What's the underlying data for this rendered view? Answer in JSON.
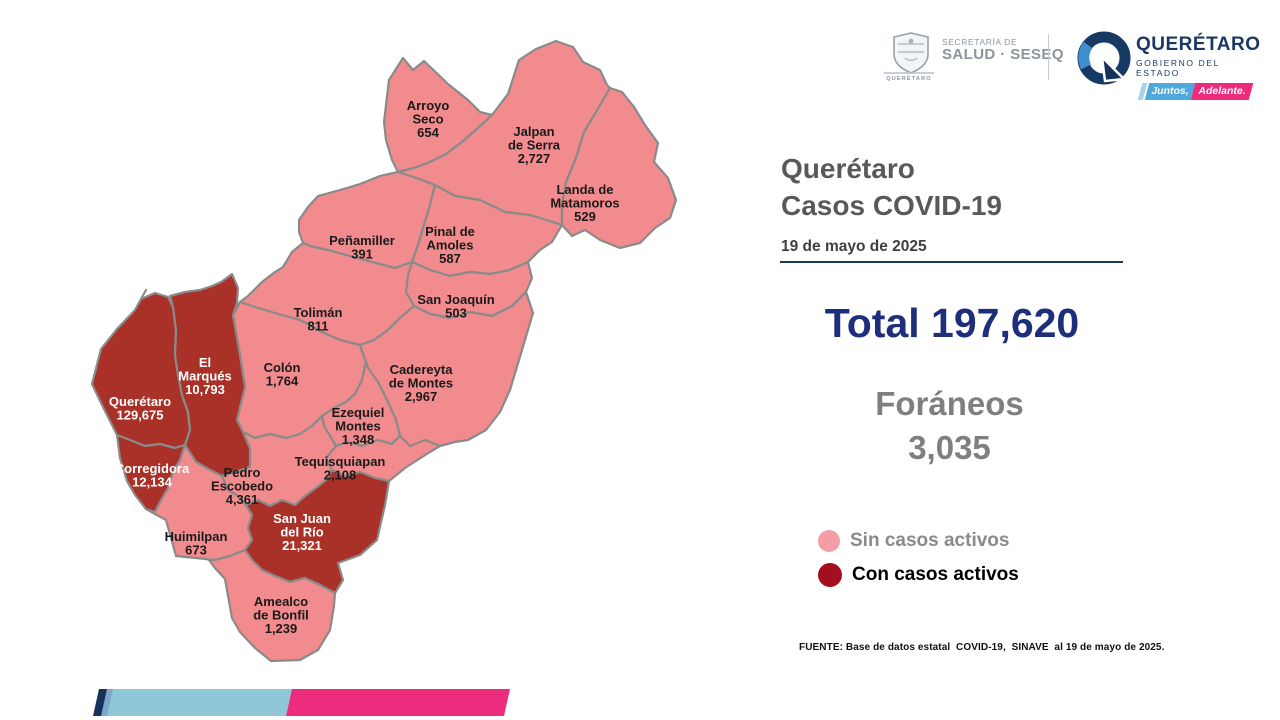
{
  "header": {
    "title_line1": "Querétaro",
    "title_line2": "Casos COVID-19",
    "date": "19 de mayo de 2025"
  },
  "stats": {
    "total_text": "Total 197,620",
    "foraneos_label": "Foráneos",
    "foraneos_value": "3,035"
  },
  "legend": {
    "no_active_label": "Sin casos activos",
    "active_label": "Con casos activos",
    "no_active_color": "#f59da6",
    "active_color": "#a50e1e"
  },
  "footer": {
    "source": "FUENTE: Base de datos estatal  COVID-19,  SINAVE  al 19 de mayo de 2025."
  },
  "logos": {
    "seseq": {
      "line1": "SECRETARÍA DE",
      "line2": "SALUD · SESEQ",
      "crest_caption": "QUERÉTARO"
    },
    "state": {
      "name": "QUERÉTARO",
      "subtitle": "GOBIERNO DEL ESTADO",
      "slogan_part1": "Juntos,",
      "slogan_part2": "Adelante."
    }
  },
  "map": {
    "border_color": "#8a8a8a",
    "inactive_fill": "#f28b8e",
    "active_fill": "#a93127",
    "label_color": "#1a1a1a",
    "active_label_color": "#ffffff",
    "municipalities": [
      {
        "id": "arroyo-seco",
        "label_lines": [
          "Arroyo",
          "Seco"
        ],
        "cases": "654",
        "active": false
      },
      {
        "id": "jalpan",
        "label_lines": [
          "Jalpan",
          "de Serra"
        ],
        "cases": "2,727",
        "active": false
      },
      {
        "id": "landa",
        "label_lines": [
          "Landa de",
          "Matamoros"
        ],
        "cases": "529",
        "active": false
      },
      {
        "id": "penamiller",
        "label_lines": [
          "Peñamiller"
        ],
        "cases": "391",
        "active": false
      },
      {
        "id": "pinal",
        "label_lines": [
          "Pinal de",
          "Amoles"
        ],
        "cases": "587",
        "active": false
      },
      {
        "id": "san-joaquin",
        "label_lines": [
          "San Joaquín"
        ],
        "cases": "503",
        "active": false
      },
      {
        "id": "toliman",
        "label_lines": [
          "Tolimán"
        ],
        "cases": "811",
        "active": false
      },
      {
        "id": "colon",
        "label_lines": [
          "Colón"
        ],
        "cases": "1,764",
        "active": false
      },
      {
        "id": "cadereyta",
        "label_lines": [
          "Cadereyta",
          "de Montes"
        ],
        "cases": "2,967",
        "active": false
      },
      {
        "id": "ezequiel",
        "label_lines": [
          "Ezequiel",
          "Montes"
        ],
        "cases": "1,348",
        "active": false
      },
      {
        "id": "tequisquiapan",
        "label_lines": [
          "Tequisquiapan"
        ],
        "cases": "2,108",
        "active": false
      },
      {
        "id": "queretaro",
        "label_lines": [
          "Querétaro"
        ],
        "cases": "129,675",
        "active": true
      },
      {
        "id": "el-marques",
        "label_lines": [
          "El",
          "Marqués"
        ],
        "cases": "10,793",
        "active": true
      },
      {
        "id": "corregidora",
        "label_lines": [
          "Corregidora"
        ],
        "cases": "12,134",
        "active": true
      },
      {
        "id": "pedro-escobedo",
        "label_lines": [
          "Pedro",
          "Escobedo"
        ],
        "cases": "4,361",
        "active": false
      },
      {
        "id": "huimilpan",
        "label_lines": [
          "Huimilpan"
        ],
        "cases": "673",
        "active": false
      },
      {
        "id": "san-juan-del-rio",
        "label_lines": [
          "San Juan",
          "del Río"
        ],
        "cases": "21,321",
        "active": true
      },
      {
        "id": "amealco",
        "label_lines": [
          "Amealco",
          "de Bonfil"
        ],
        "cases": "1,239",
        "active": false
      }
    ]
  },
  "bottom_bar_colors": {
    "navy": "#14335b",
    "steel": "#7fa6c6",
    "cyan": "#8fc7d8",
    "pink": "#ec2d7d"
  }
}
